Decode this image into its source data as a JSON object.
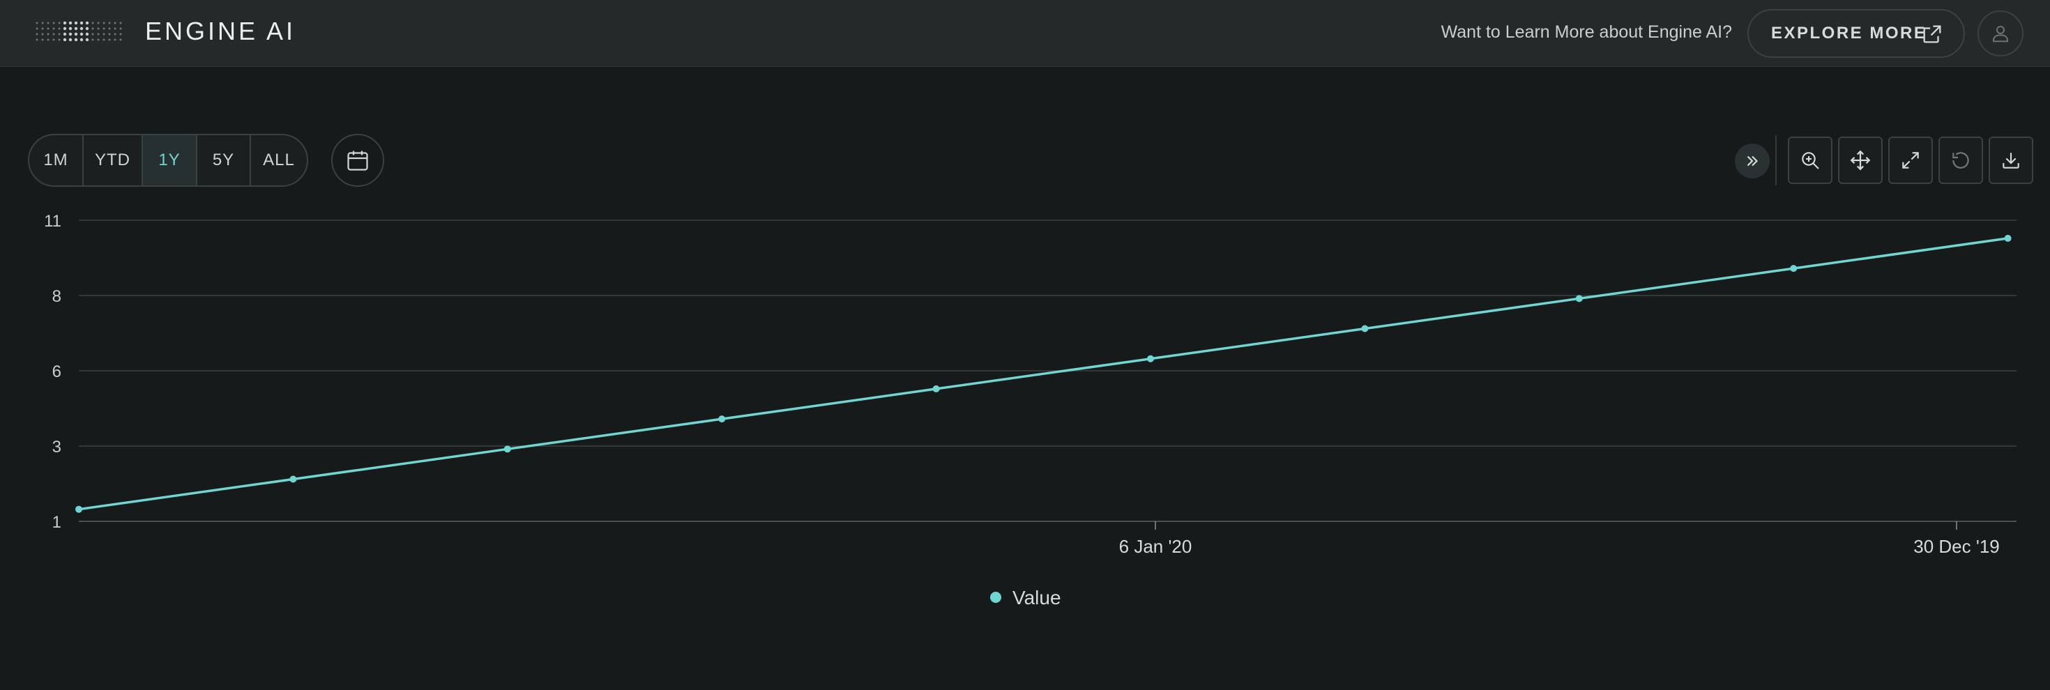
{
  "header": {
    "brand": "ENGINE AI",
    "learn_text": "Want to Learn More about Engine AI?",
    "explore_label": "EXPLORE MORE"
  },
  "toolbar": {
    "ranges": [
      "1M",
      "YTD",
      "1Y",
      "5Y",
      "ALL"
    ],
    "active_range": "1Y",
    "icons": [
      "calendar-icon",
      "double-chevron-right-icon",
      "zoom-in-icon",
      "pan-icon",
      "expand-icon",
      "reset-icon",
      "download-icon"
    ]
  },
  "colors": {
    "accent": "#6fd6d2",
    "background": "#161a1b",
    "header": "#25292a"
  },
  "chart_data": {
    "type": "line",
    "series": [
      {
        "name": "Value",
        "values": [
          1.4,
          2.4,
          3.4,
          4.4,
          5.4,
          6.4,
          7.4,
          8.4,
          9.4,
          10.4
        ]
      }
    ],
    "y_ticks": [
      "11",
      "8",
      "6",
      "3",
      "1"
    ],
    "ylim": [
      1,
      11
    ],
    "x_tick_labels": [
      "6 Jan '20",
      "30 Dec '19"
    ],
    "legend": [
      "Value"
    ],
    "legend_position": "bottom-center",
    "grid": true
  }
}
